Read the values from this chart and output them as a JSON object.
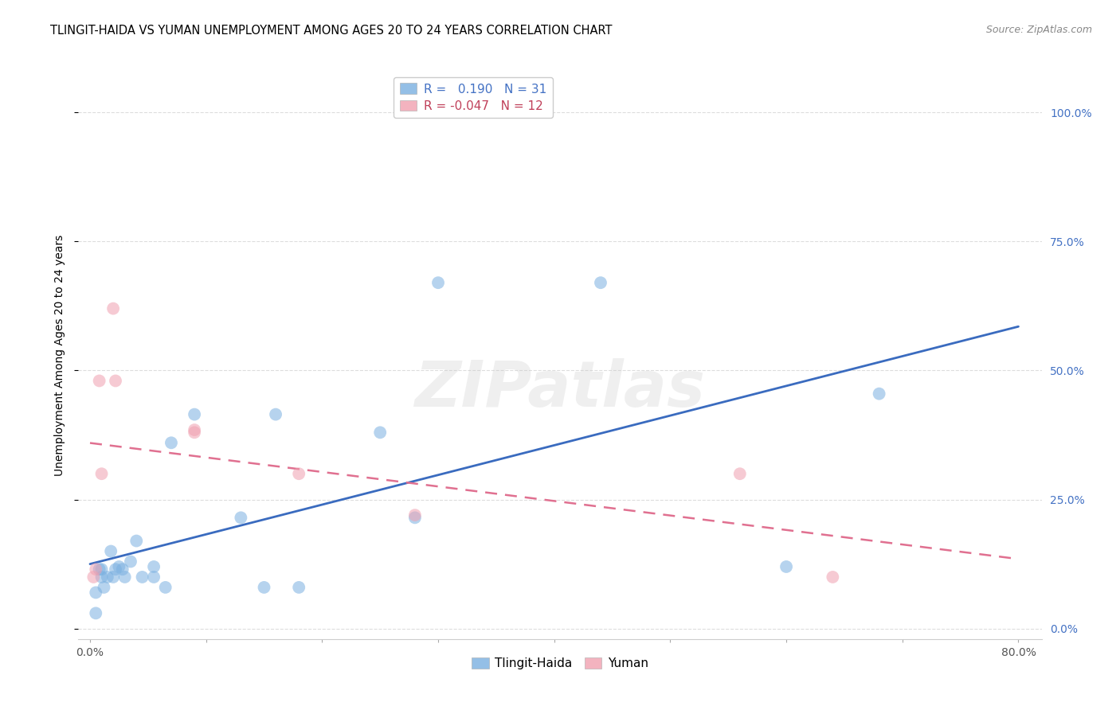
{
  "title": "TLINGIT-HAIDA VS YUMAN UNEMPLOYMENT AMONG AGES 20 TO 24 YEARS CORRELATION CHART",
  "source": "Source: ZipAtlas.com",
  "ylabel": "Unemployment Among Ages 20 to 24 years",
  "xlim": [
    -0.01,
    0.82
  ],
  "ylim": [
    -0.02,
    1.08
  ],
  "yticks": [
    0.0,
    0.25,
    0.5,
    0.75,
    1.0
  ],
  "ytick_labels": [
    "",
    "",
    "",
    "",
    ""
  ],
  "right_ytick_labels": [
    "0.0%",
    "25.0%",
    "50.0%",
    "75.0%",
    "100.0%"
  ],
  "xticks": [
    0.0,
    0.1,
    0.2,
    0.3,
    0.4,
    0.5,
    0.6,
    0.7,
    0.8
  ],
  "xtick_labels": [
    "0.0%",
    "",
    "",
    "",
    "",
    "",
    "",
    "",
    "80.0%"
  ],
  "background_color": "#ffffff",
  "grid_color": "#dddddd",
  "watermark": "ZIPatlas",
  "tlingit_color": "#7ab0e0",
  "yuman_color": "#f0a0b0",
  "tlingit_line_color": "#3a6bbf",
  "yuman_line_color": "#e07090",
  "legend_R_tlingit": "0.190",
  "legend_N_tlingit": "31",
  "legend_R_yuman": "-0.047",
  "legend_N_yuman": "12",
  "tlingit_x": [
    0.005,
    0.005,
    0.008,
    0.01,
    0.01,
    0.012,
    0.015,
    0.018,
    0.02,
    0.022,
    0.025,
    0.028,
    0.03,
    0.035,
    0.04,
    0.045,
    0.055,
    0.055,
    0.065,
    0.07,
    0.09,
    0.13,
    0.15,
    0.16,
    0.18,
    0.25,
    0.28,
    0.3,
    0.44,
    0.6,
    0.68
  ],
  "tlingit_y": [
    0.03,
    0.07,
    0.115,
    0.115,
    0.1,
    0.08,
    0.1,
    0.15,
    0.1,
    0.115,
    0.12,
    0.115,
    0.1,
    0.13,
    0.17,
    0.1,
    0.1,
    0.12,
    0.08,
    0.36,
    0.415,
    0.215,
    0.08,
    0.415,
    0.08,
    0.38,
    0.215,
    0.67,
    0.67,
    0.12,
    0.455
  ],
  "yuman_x": [
    0.003,
    0.005,
    0.008,
    0.01,
    0.022,
    0.09,
    0.09,
    0.18,
    0.28,
    0.56,
    0.64,
    0.02
  ],
  "yuman_y": [
    0.1,
    0.115,
    0.48,
    0.3,
    0.48,
    0.385,
    0.38,
    0.3,
    0.22,
    0.3,
    0.1,
    0.62
  ],
  "marker_size": 130,
  "marker_alpha": 0.55,
  "title_fontsize": 10.5,
  "axis_label_fontsize": 10,
  "tick_fontsize": 10,
  "legend_fontsize": 11,
  "source_fontsize": 9,
  "right_ytick_color": "#4472c4"
}
